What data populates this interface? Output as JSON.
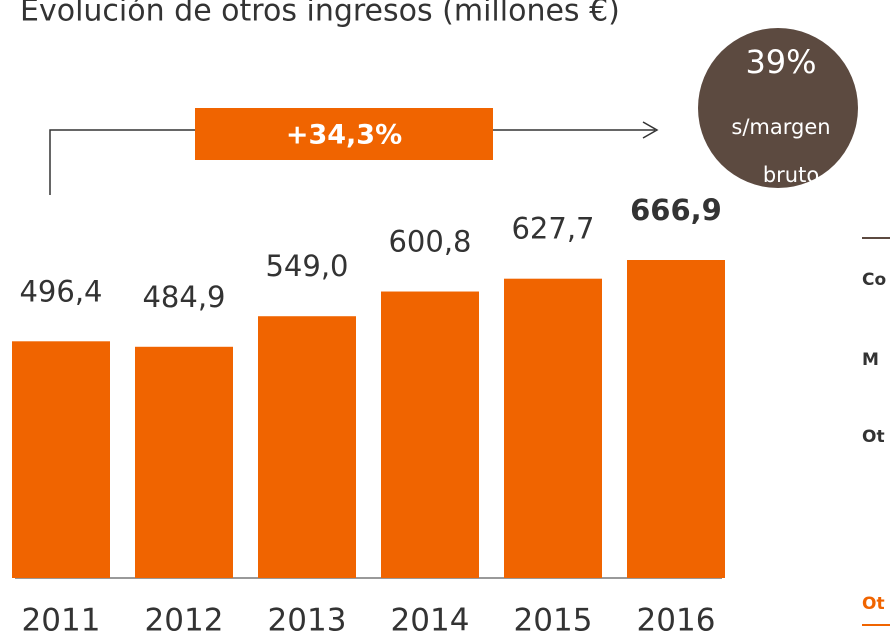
{
  "chart_data": {
    "type": "bar",
    "title": "Evolución de otros ingresos (millones €)",
    "categories": [
      "2011",
      "2012",
      "2013",
      "2014",
      "2015",
      "2016"
    ],
    "values": [
      496.4,
      484.9,
      549.0,
      600.8,
      627.7,
      666.9
    ],
    "value_labels": [
      "496,4",
      "484,9",
      "549,0",
      "600,8",
      "627,7",
      "666,9"
    ],
    "color": "#f06400",
    "growth_annotation": "+34,3%",
    "badge": {
      "value": "39%",
      "line1": "s/margen",
      "line2": "bruto"
    },
    "side_labels": [
      "Co",
      "M",
      "Ot",
      "Ot"
    ]
  }
}
